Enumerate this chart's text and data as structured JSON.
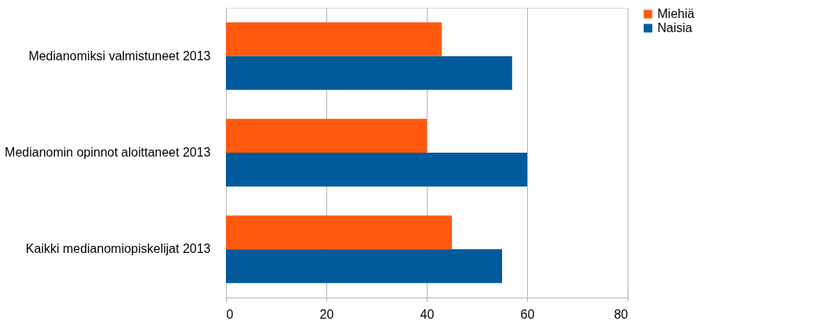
{
  "chart_data": {
    "type": "bar",
    "orientation": "horizontal",
    "categories": [
      "Medianomiksi valmistuneet 2013",
      "Medianomin opinnot aloittaneet 2013",
      "Kaikki medianomiopiskelijat  2013"
    ],
    "series": [
      {
        "name": "Miehiä",
        "color": "#ff5a0e",
        "values": [
          43,
          40,
          45
        ]
      },
      {
        "name": "Naisia",
        "color": "#005a9c",
        "values": [
          57,
          60,
          55
        ]
      }
    ],
    "xlim": [
      0,
      80
    ],
    "xticks": [
      0,
      20,
      40,
      60,
      80
    ],
    "grid": "x",
    "legend": "right"
  }
}
